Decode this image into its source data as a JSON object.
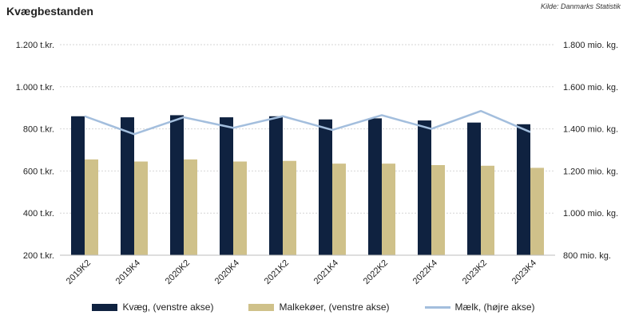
{
  "header": {
    "title": "Kvægbestanden",
    "source": "Kilde: Danmarks Statistik"
  },
  "colors": {
    "kvaeg": "#0f2240",
    "malkekoer": "#cfc18a",
    "maelk": "#a3bedd",
    "grid": "#d6d6d6"
  },
  "chart_data": {
    "type": "bar",
    "categories": [
      "2019K2",
      "2019K4",
      "2020K2",
      "2020K4",
      "2021K2",
      "2021K4",
      "2022K2",
      "2022K4",
      "2023K2",
      "2023K4"
    ],
    "series": [
      {
        "name": "Kvæg, (venstre akse)",
        "type": "bar",
        "axis": "left",
        "values": [
          860,
          855,
          865,
          855,
          860,
          845,
          850,
          840,
          830,
          822
        ]
      },
      {
        "name": "Malkekøer, (venstre akse)",
        "type": "bar",
        "axis": "left",
        "values": [
          655,
          645,
          655,
          645,
          648,
          635,
          635,
          628,
          625,
          615
        ]
      },
      {
        "name": "Mælk, (højre akse)",
        "type": "line",
        "axis": "right",
        "values": [
          1460,
          1375,
          1455,
          1405,
          1460,
          1395,
          1465,
          1400,
          1485,
          1385
        ]
      }
    ],
    "y_left": {
      "min": 200,
      "max": 1200,
      "ticks": [
        200,
        400,
        600,
        800,
        1000,
        1200
      ],
      "tick_labels": [
        "200 t.kr.",
        "400 t.kr.",
        "600 t.kr.",
        "800 t.kr.",
        "1.000 t.kr.",
        "1.200 t.kr."
      ]
    },
    "y_right": {
      "min": 800,
      "max": 1800,
      "ticks": [
        800,
        1000,
        1200,
        1400,
        1600,
        1800
      ],
      "tick_labels": [
        "800 mio. kg.",
        "1.000 mio. kg.",
        "1.200 mio. kg.",
        "1.400 mio. kg.",
        "1.600 mio. kg.",
        "1.800 mio. kg."
      ]
    },
    "grid": true,
    "legend_position": "bottom"
  }
}
